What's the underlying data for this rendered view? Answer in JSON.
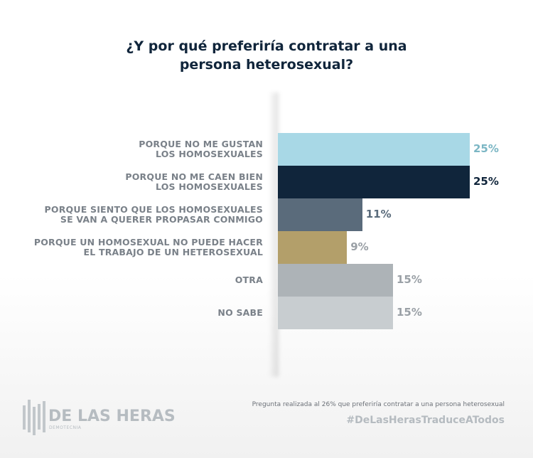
{
  "chart_data": {
    "type": "bar",
    "orientation": "horizontal",
    "title": "¿Y por qué preferiría contratar a una persona heterosexual?",
    "title_lines": [
      "¿Y por qué preferiría contratar a una",
      "persona heterosexual?"
    ],
    "categories": [
      [
        "PORQUE NO ME GUSTAN",
        "LOS HOMOSEXUALES"
      ],
      [
        "PORQUE NO ME CAEN BIEN",
        "LOS HOMOSEXUALES"
      ],
      [
        "PORQUE SIENTO QUE LOS HOMOSEXUALES",
        "SE VAN A QUERER PROPASAR CONMIGO"
      ],
      [
        "PORQUE UN HOMOSEXUAL NO PUEDE HACER",
        "EL TRABAJO DE UN HETEROSEXUAL"
      ],
      [
        "OTRA"
      ],
      [
        "NO SABE"
      ]
    ],
    "values": [
      25,
      25,
      11,
      9,
      15,
      15
    ],
    "value_labels": [
      "25%",
      "25%",
      "11%",
      "9%",
      "15%",
      "15%"
    ],
    "colors": [
      "#a8d8e6",
      "#10253b",
      "#5a6b7b",
      "#b39f6a",
      "#adb3b7",
      "#c8cdd0"
    ],
    "label_colors": [
      "#7bb6c4",
      "#10253b",
      "#5a6b7b",
      "#9aa0a6",
      "#9aa0a6",
      "#9aa0a6"
    ],
    "xlim": [
      0,
      25
    ],
    "grid": false,
    "legend": "none"
  },
  "footer": {
    "note": "Pregunta realizada al 26% que preferiría contratar a una persona heterosexual",
    "hashtag": "#DeLasHerasTraduceATodos",
    "logo_text": "DE LAS HERAS",
    "logo_sub": "DEMOTECNIA"
  }
}
